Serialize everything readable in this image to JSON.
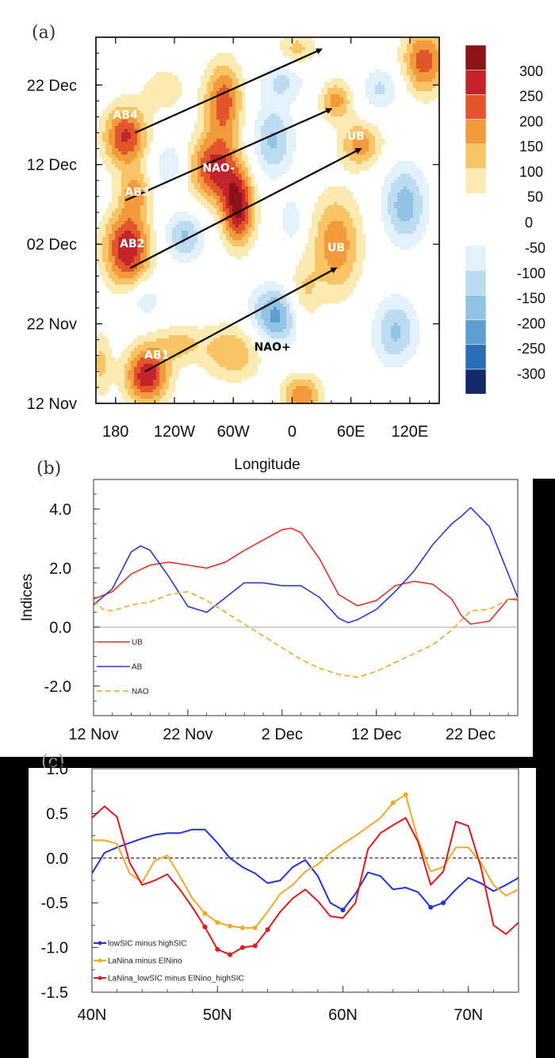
{
  "figure": {
    "panel_a_letter": "(a)",
    "panel_b_letter": "(b)",
    "panel_c_letter": "(c)"
  },
  "colors": {
    "pos": [
      "#fbeab1",
      "#f9c465",
      "#f29a3c",
      "#e2562c",
      "#c3232b",
      "#8a1418"
    ],
    "neg": [
      "#e3f1fa",
      "#bedcef",
      "#93c3e4",
      "#5b9fd1",
      "#2c6eb6",
      "#14296a"
    ],
    "ub": "#e4322b",
    "ab": "#2b3ad6",
    "nao": "#f0a92a",
    "c_blue": "#2233dd",
    "c_orange": "#f0a92a",
    "c_red": "#e31a1c"
  },
  "chart_data": [
    {
      "type": "heatmap",
      "panel": "a",
      "title": "",
      "xlabel": "Longitude",
      "ylabel": "",
      "xlim": [
        -200,
        150
      ],
      "xticks": [
        {
          "value": -180,
          "label": "180"
        },
        {
          "value": -120,
          "label": "120W"
        },
        {
          "value": -60,
          "label": "60W"
        },
        {
          "value": 0,
          "label": "0"
        },
        {
          "value": 60,
          "label": "60E"
        },
        {
          "value": 120,
          "label": "120E"
        }
      ],
      "ylim": [
        0,
        46
      ],
      "yticks": [
        {
          "value": 0,
          "label": "12 Nov"
        },
        {
          "value": 10,
          "label": "22 Nov"
        },
        {
          "value": 20,
          "label": "02 Dec"
        },
        {
          "value": 30,
          "label": "12 Dec"
        },
        {
          "value": 40,
          "label": "22 Dec"
        }
      ],
      "colorbar": {
        "positive_labels": [
          "300",
          "250",
          "200",
          "150",
          "100",
          "50"
        ],
        "zero_label": "0",
        "negative_labels": [
          "-50",
          "-100",
          "-150",
          "-200",
          "-250",
          "-300"
        ]
      },
      "blobs": [
        {
          "lon": -170,
          "t": 33.5,
          "v": 260,
          "slon": 16,
          "st": 2.8
        },
        {
          "lon": -160,
          "t": 26.5,
          "v": 150,
          "slon": 11,
          "st": 2
        },
        {
          "lon": -168,
          "t": 19.5,
          "v": 300,
          "slon": 17,
          "st": 3.4
        },
        {
          "lon": -148,
          "t": 3.5,
          "v": 290,
          "slon": 16,
          "st": 2.6
        },
        {
          "lon": -115,
          "t": 7.5,
          "v": 110,
          "slon": 18,
          "st": 1.7
        },
        {
          "lon": -70,
          "t": 38,
          "v": 230,
          "slon": 14,
          "st": 3.5
        },
        {
          "lon": -80,
          "t": 29.5,
          "v": 260,
          "slon": 18,
          "st": 3
        },
        {
          "lon": -55,
          "t": 24.5,
          "v": 310,
          "slon": 12,
          "st": 3.3
        },
        {
          "lon": -60,
          "t": 6.5,
          "v": 150,
          "slon": 22,
          "st": 2.6
        },
        {
          "lon": 45,
          "t": 20,
          "v": 190,
          "slon": 18,
          "st": 4.5
        },
        {
          "lon": 10,
          "t": 13,
          "v": 140,
          "slon": 12,
          "st": 3
        },
        {
          "lon": 70,
          "t": 32.5,
          "v": 180,
          "slon": 15,
          "st": 2
        },
        {
          "lon": 45,
          "t": 38,
          "v": 170,
          "slon": 12,
          "st": 1.8
        },
        {
          "lon": 135,
          "t": 43,
          "v": 230,
          "slon": 16,
          "st": 3
        },
        {
          "lon": 10,
          "t": 1,
          "v": 200,
          "slon": 14,
          "st": 1.8
        },
        {
          "lon": 5,
          "t": 44.5,
          "v": 120,
          "slon": 14,
          "st": 1.6
        },
        {
          "lon": -130,
          "t": 39.5,
          "v": 90,
          "slon": 16,
          "st": 2
        },
        {
          "lon": -195,
          "t": 5,
          "v": 110,
          "slon": 8,
          "st": 3
        },
        {
          "lon": -20,
          "t": 33,
          "v": -160,
          "slon": 15,
          "st": 3.2
        },
        {
          "lon": -15,
          "t": 11,
          "v": -230,
          "slon": 20,
          "st": 2.6
        },
        {
          "lon": -110,
          "t": 21,
          "v": -160,
          "slon": 14,
          "st": 2.2
        },
        {
          "lon": -125,
          "t": 30,
          "v": -110,
          "slon": 12,
          "st": 2
        },
        {
          "lon": 115,
          "t": 25,
          "v": -180,
          "slon": 16,
          "st": 3.5
        },
        {
          "lon": 105,
          "t": 9,
          "v": -160,
          "slon": 16,
          "st": 3
        },
        {
          "lon": -150,
          "t": 13,
          "v": -100,
          "slon": 12,
          "st": 1.6
        },
        {
          "lon": 90,
          "t": 39.5,
          "v": -110,
          "slon": 14,
          "st": 2
        },
        {
          "lon": -10,
          "t": 40.5,
          "v": -110,
          "slon": 16,
          "st": 1.8
        },
        {
          "lon": 0,
          "t": 23,
          "v": -100,
          "slon": 8,
          "st": 2
        }
      ],
      "arrows": [
        {
          "from": [
            -150,
            4
          ],
          "to": [
            45,
            17
          ]
        },
        {
          "from": [
            -165,
            17
          ],
          "to": [
            70,
            32
          ]
        },
        {
          "from": [
            -170,
            25.5
          ],
          "to": [
            40,
            37
          ]
        },
        {
          "from": [
            -160,
            34
          ],
          "to": [
            30,
            44.5
          ]
        }
      ],
      "annotations": [
        {
          "text": "AB4",
          "lon": -170,
          "t": 36.2
        },
        {
          "text": "AB3",
          "lon": -158,
          "t": 26.5
        },
        {
          "text": "AB2",
          "lon": -163,
          "t": 20
        },
        {
          "text": "AB1",
          "lon": -138,
          "t": 6
        },
        {
          "text": "NAO-",
          "lon": -75,
          "t": 29.5
        },
        {
          "text": "UB",
          "lon": 45,
          "t": 19.5
        },
        {
          "text": "UB",
          "lon": 65,
          "t": 33.5
        },
        {
          "text": "NAO+",
          "lon": -20,
          "t": 7
        }
      ]
    },
    {
      "type": "line",
      "panel": "b",
      "title": "",
      "xlabel": "",
      "ylabel": "Indices",
      "xlim": [
        0,
        45
      ],
      "ylim": [
        -3.0,
        5.0
      ],
      "xticks": [
        {
          "value": 0,
          "label": "12 Nov"
        },
        {
          "value": 10,
          "label": "22 Nov"
        },
        {
          "value": 20,
          "label": "2 Dec"
        },
        {
          "value": 30,
          "label": "12 Dec"
        },
        {
          "value": 40,
          "label": "22 Dec"
        }
      ],
      "yticks": [
        {
          "value": 4.0,
          "label": "4.0"
        },
        {
          "value": 2.0,
          "label": "2.0"
        },
        {
          "value": 0.0,
          "label": "0.0"
        },
        {
          "value": -2.0,
          "label": "-2.0"
        }
      ],
      "zero_line": true,
      "series": [
        {
          "name": "UB",
          "color": "#e4322b",
          "dashed": false,
          "x": [
            0,
            2,
            4,
            6,
            8,
            10,
            12,
            14,
            16,
            18,
            20,
            21,
            22,
            24,
            26,
            28,
            30,
            32,
            34,
            36,
            38,
            39,
            40,
            42,
            44,
            45
          ],
          "values": [
            0.95,
            1.2,
            1.8,
            2.1,
            2.2,
            2.1,
            2.0,
            2.2,
            2.6,
            2.95,
            3.3,
            3.35,
            3.2,
            2.3,
            1.1,
            0.72,
            0.9,
            1.4,
            1.55,
            1.45,
            0.95,
            0.4,
            0.1,
            0.2,
            0.95,
            0.92
          ]
        },
        {
          "name": "AB",
          "color": "#2b3ad6",
          "dashed": false,
          "x": [
            0,
            2,
            4,
            5,
            6,
            8,
            10,
            12,
            14,
            16,
            18,
            20,
            22,
            24,
            26,
            27,
            28,
            30,
            32,
            34,
            36,
            38,
            39,
            40,
            42,
            44,
            45
          ],
          "values": [
            0.75,
            1.3,
            2.55,
            2.75,
            2.6,
            1.7,
            0.7,
            0.5,
            1.0,
            1.5,
            1.5,
            1.4,
            1.4,
            1.0,
            0.3,
            0.15,
            0.25,
            0.6,
            1.2,
            1.9,
            2.8,
            3.5,
            3.75,
            4.05,
            3.4,
            1.8,
            1.0
          ]
        },
        {
          "name": "NAO",
          "color": "#f0a92a",
          "dashed": true,
          "x": [
            0,
            1,
            2,
            4,
            6,
            8,
            10,
            12,
            14,
            16,
            18,
            20,
            22,
            24,
            26,
            28,
            30,
            32,
            34,
            36,
            38,
            40,
            42,
            44,
            45
          ],
          "values": [
            0.9,
            0.6,
            0.55,
            0.75,
            0.85,
            1.1,
            1.2,
            0.9,
            0.5,
            0.1,
            -0.3,
            -0.7,
            -1.1,
            -1.4,
            -1.6,
            -1.7,
            -1.5,
            -1.2,
            -0.9,
            -0.6,
            -0.1,
            0.55,
            0.6,
            0.95,
            0.98
          ]
        }
      ]
    },
    {
      "type": "line",
      "panel": "c",
      "title": "",
      "xlabel": "",
      "ylabel": "",
      "xlim": [
        40,
        74
      ],
      "ylim": [
        -1.5,
        1.0
      ],
      "xticks": [
        {
          "value": 40,
          "label": "40N"
        },
        {
          "value": 50,
          "label": "50N"
        },
        {
          "value": 60,
          "label": "60N"
        },
        {
          "value": 70,
          "label": "70N"
        }
      ],
      "yticks": [
        {
          "value": 1.0,
          "label": "1.0"
        },
        {
          "value": 0.5,
          "label": "0.5"
        },
        {
          "value": 0.0,
          "label": "0.0"
        },
        {
          "value": -0.5,
          "label": "-0.5"
        },
        {
          "value": -1.0,
          "label": "-1.0"
        },
        {
          "value": -1.5,
          "label": "-1.5"
        }
      ],
      "zero_line": true,
      "series": [
        {
          "name": "lowSIC minus highSIC",
          "color": "#2233dd",
          "x": [
            40,
            41,
            42,
            43,
            44,
            45,
            46,
            47,
            48,
            49,
            50,
            51,
            52,
            53,
            54,
            55,
            56,
            57,
            58,
            59,
            60,
            61,
            62,
            63,
            64,
            65,
            66,
            67,
            68,
            69,
            70,
            71,
            72,
            73,
            74
          ],
          "values": [
            -0.17,
            0.06,
            0.12,
            0.17,
            0.22,
            0.26,
            0.28,
            0.28,
            0.32,
            0.32,
            0.17,
            0.0,
            -0.1,
            -0.17,
            -0.28,
            -0.25,
            -0.1,
            -0.02,
            -0.2,
            -0.5,
            -0.58,
            -0.4,
            -0.16,
            -0.2,
            -0.35,
            -0.33,
            -0.38,
            -0.55,
            -0.5,
            -0.35,
            -0.22,
            -0.28,
            -0.37,
            -0.3,
            -0.22
          ],
          "markers_x": [
            60,
            67,
            68
          ]
        },
        {
          "name": "LaNina minus ElNino",
          "color": "#f0a92a",
          "x": [
            40,
            41,
            42,
            43,
            44,
            45,
            46,
            47,
            48,
            49,
            50,
            51,
            52,
            53,
            54,
            55,
            56,
            57,
            58,
            59,
            60,
            61,
            62,
            63,
            64,
            65,
            66,
            67,
            68,
            69,
            70,
            71,
            72,
            73,
            74
          ],
          "values": [
            0.2,
            0.2,
            0.16,
            -0.17,
            -0.27,
            -0.03,
            0.03,
            -0.2,
            -0.45,
            -0.62,
            -0.72,
            -0.76,
            -0.78,
            -0.78,
            -0.6,
            -0.4,
            -0.3,
            -0.15,
            -0.07,
            0.06,
            0.16,
            0.25,
            0.35,
            0.45,
            0.62,
            0.71,
            0.2,
            -0.15,
            -0.1,
            0.12,
            0.12,
            -0.05,
            -0.3,
            -0.42,
            -0.35
          ],
          "markers_x": [
            49,
            50,
            51,
            52,
            53,
            64,
            65
          ]
        },
        {
          "name": "LaNina_lowSIC minus ElNino_highSIC",
          "color": "#e31a1c",
          "x": [
            40,
            41,
            42,
            43,
            44,
            45,
            46,
            47,
            48,
            49,
            50,
            51,
            52,
            53,
            54,
            55,
            56,
            57,
            58,
            59,
            60,
            61,
            62,
            63,
            64,
            65,
            66,
            67,
            68,
            69,
            70,
            71,
            72,
            73,
            74
          ],
          "values": [
            0.45,
            0.58,
            0.46,
            -0.05,
            -0.3,
            -0.25,
            -0.18,
            -0.35,
            -0.55,
            -0.77,
            -1.02,
            -1.08,
            -1.0,
            -0.98,
            -0.8,
            -0.6,
            -0.45,
            -0.35,
            -0.48,
            -0.65,
            -0.67,
            -0.5,
            0.1,
            0.28,
            0.37,
            0.45,
            0.18,
            -0.3,
            -0.15,
            0.41,
            0.36,
            -0.1,
            -0.75,
            -0.85,
            -0.72
          ],
          "markers_x": [
            49,
            50,
            51,
            52,
            53,
            54
          ]
        }
      ]
    }
  ]
}
